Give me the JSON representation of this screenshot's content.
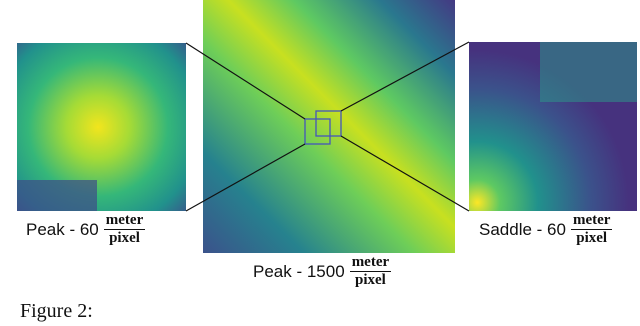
{
  "figure": {
    "panels": [
      {
        "label": "Peak - 60",
        "unit_numerator": "meter",
        "unit_denominator": "pixel"
      },
      {
        "label": "Peak - 1500",
        "unit_numerator": "meter",
        "unit_denominator": "pixel"
      },
      {
        "label": "Saddle - 60",
        "unit_numerator": "meter",
        "unit_denominator": "pixel"
      }
    ],
    "caption": "Figure 2:"
  }
}
